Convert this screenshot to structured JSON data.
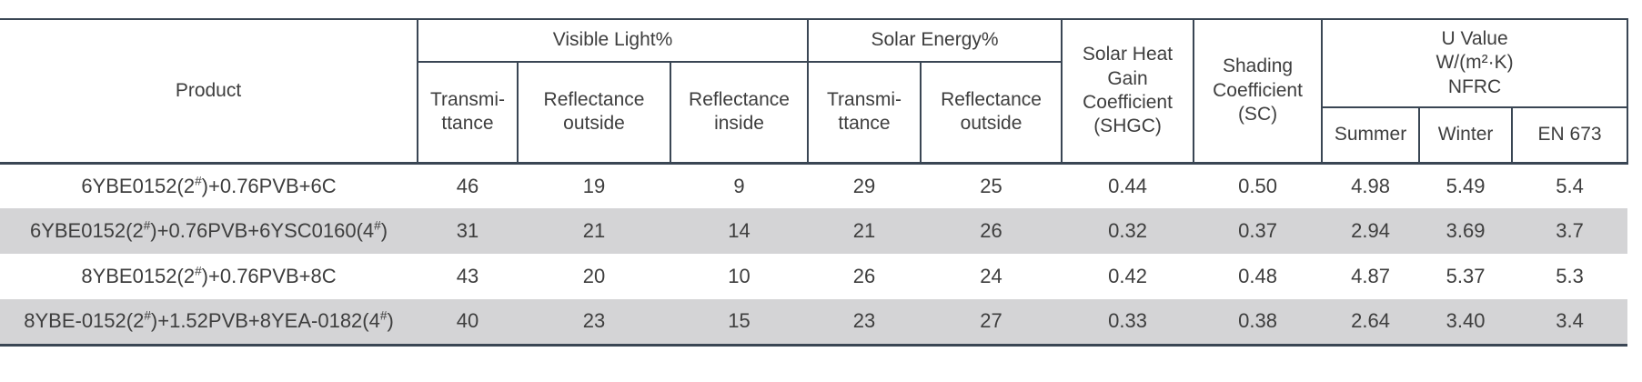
{
  "table": {
    "header": {
      "product": "Product",
      "visible_light_group": "Visible Light%",
      "solar_energy_group": "Solar Energy%",
      "vl_transmittance": "Transmi-\nttance",
      "vl_reflectance_outside": "Reflectance\noutside",
      "vl_reflectance_inside": "Reflectance\ninside",
      "se_transmittance": "Transmi-\nttance",
      "se_reflectance_outside": "Reflectance\noutside",
      "shgc": "Solar Heat\nGain\nCoefficient\n(SHGC)",
      "sc": "Shading\nCoefficient\n(SC)",
      "u_value_group": "U Value\nW/(m²·K)\nNFRC",
      "summer": "Summer",
      "winter": "Winter",
      "en673": "EN 673"
    },
    "rows": [
      [
        "6YBE0152(2#)+0.76PVB+6C",
        "46",
        "19",
        "9",
        "29",
        "25",
        "0.44",
        "0.50",
        "4.98",
        "5.49",
        "5.4"
      ],
      [
        "6YBE0152(2#)+0.76PVB+6YSC0160(4#)",
        "31",
        "21",
        "14",
        "21",
        "26",
        "0.32",
        "0.37",
        "2.94",
        "3.69",
        "3.7"
      ],
      [
        "8YBE0152(2#)+0.76PVB+8C",
        "43",
        "20",
        "10",
        "26",
        "24",
        "0.42",
        "0.48",
        "4.87",
        "5.37",
        "5.3"
      ],
      [
        "8YBE-0152(2#)+1.52PVB+8YEA-0182(4#)",
        "40",
        "23",
        "15",
        "23",
        "27",
        "0.33",
        "0.38",
        "2.64",
        "3.40",
        "3.4"
      ]
    ],
    "colors": {
      "border": "#3a4654",
      "stripe": "#d4d4d6",
      "text": "#3e3e3e"
    }
  }
}
